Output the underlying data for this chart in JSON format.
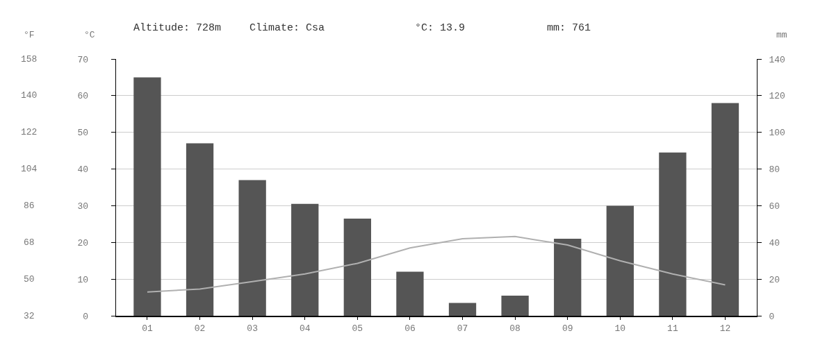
{
  "chart_data": {
    "type": "bar",
    "annotations": [
      "Altitude: 728m",
      "Climate: Csa",
      "°C: 13.9",
      "mm: 761"
    ],
    "ylabel": "°C",
    "y2label": "mm",
    "y3label": "°F",
    "categories": [
      "01",
      "02",
      "03",
      "04",
      "05",
      "06",
      "07",
      "08",
      "09",
      "10",
      "11",
      "12"
    ],
    "series": [
      {
        "axis": "y2",
        "color": "#555555",
        "values": [
          130,
          94,
          74,
          61,
          53,
          24,
          7,
          11,
          42,
          60,
          89,
          116
        ]
      },
      {
        "type": "line",
        "axis": "y",
        "color": "#b0b0b0",
        "line_style": "solid",
        "marker": "none",
        "values": [
          6.5,
          7.3,
          9.3,
          11.4,
          14.3,
          18.5,
          21,
          21.6,
          19.3,
          15,
          11.4,
          8.4
        ]
      }
    ],
    "ylim": [
      0,
      70
    ],
    "yticks": [
      0,
      10,
      20,
      30,
      40,
      50,
      60,
      70
    ],
    "y2lim": [
      0,
      140
    ],
    "y2ticks": [
      0,
      20,
      40,
      60,
      80,
      100,
      120,
      140
    ],
    "y3lim": [
      32,
      158
    ],
    "y3ticks": [
      32,
      50,
      68,
      86,
      104,
      122,
      140,
      158
    ],
    "grid": "y"
  }
}
